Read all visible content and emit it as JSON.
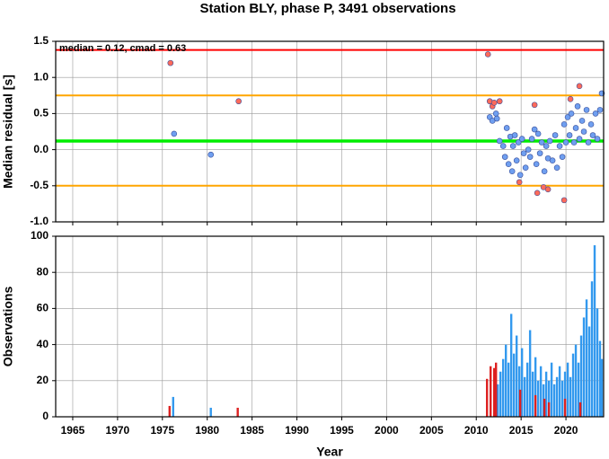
{
  "chart_data": [
    {
      "type": "scatter",
      "title": "Station BLY, phase P, 3491 observations",
      "ylabel": "Median residual [s]",
      "annotation": "median = 0.12, cmad = 0.63",
      "xlim": [
        1963.1,
        2024.2
      ],
      "xticks": [
        1965,
        1970,
        1975,
        1980,
        1985,
        1990,
        1995,
        2000,
        2005,
        2010,
        2015,
        2020
      ],
      "ylim": [
        -1,
        1.5
      ],
      "yticks": [
        {
          "value": -1,
          "label": "-1.0"
        },
        -0.5,
        {
          "value": 0,
          "label": "0.0"
        },
        0.5,
        {
          "value": 1,
          "label": "1.0"
        },
        1.5
      ],
      "grid": true,
      "hlines": [
        {
          "value": 1.38,
          "color": "#ff0000"
        },
        {
          "value": 0.75,
          "color": "#ffa500"
        },
        {
          "value": 0.12,
          "color": "#00ee00"
        },
        {
          "value": -0.5,
          "color": "#ffa500"
        }
      ],
      "series": [
        {
          "color": "#6f9ff0",
          "x": [
            1976.3,
            1980.4,
            2011.5,
            2011.8,
            2012.2,
            2012.3,
            2012.6,
            2013.0,
            2013.2,
            2013.4,
            2013.6,
            2013.8,
            2014.0,
            2014.1,
            2014.3,
            2014.5,
            2014.7,
            2014.9,
            2015.1,
            2015.3,
            2015.5,
            2015.8,
            2016.0,
            2016.2,
            2016.5,
            2016.7,
            2016.9,
            2017.1,
            2017.3,
            2017.6,
            2017.8,
            2018.0,
            2018.2,
            2018.5,
            2018.8,
            2019.0,
            2019.3,
            2019.6,
            2019.8,
            2020.0,
            2020.2,
            2020.4,
            2020.6,
            2020.9,
            2021.1,
            2021.3,
            2021.5,
            2021.8,
            2022.0,
            2022.3,
            2022.5,
            2022.8,
            2023.0,
            2023.3,
            2023.5,
            2023.8,
            2024.0
          ],
          "values": [
            0.22,
            -0.07,
            0.45,
            0.4,
            0.5,
            0.43,
            0.12,
            0.05,
            -0.1,
            0.3,
            -0.2,
            0.18,
            -0.3,
            0.05,
            0.2,
            -0.15,
            0.1,
            -0.35,
            0.15,
            -0.05,
            -0.25,
            0.0,
            -0.1,
            0.15,
            0.28,
            -0.2,
            0.22,
            -0.05,
            0.1,
            -0.3,
            0.05,
            -0.12,
            0.12,
            -0.15,
            0.2,
            -0.25,
            0.05,
            -0.1,
            0.35,
            0.1,
            0.45,
            0.2,
            0.5,
            0.1,
            0.3,
            0.6,
            0.15,
            0.4,
            0.25,
            0.55,
            0.1,
            0.35,
            0.2,
            0.5,
            0.15,
            0.55,
            0.78
          ]
        },
        {
          "color": "#ff6a5a",
          "x": [
            1975.9,
            1983.5,
            2011.3,
            2011.5,
            2011.8,
            2012.0,
            2012.6,
            2014.8,
            2016.5,
            2016.8,
            2017.5,
            2018.0,
            2019.8,
            2020.5,
            2021.5
          ],
          "values": [
            1.2,
            0.67,
            1.32,
            0.67,
            0.6,
            0.65,
            0.67,
            -0.45,
            0.62,
            -0.6,
            -0.52,
            -0.55,
            -0.7,
            0.7,
            0.88
          ]
        }
      ]
    },
    {
      "type": "bar",
      "xlabel": "Year",
      "ylabel": "Observations",
      "xlim": [
        1963.1,
        2024.2
      ],
      "xticks": [
        1965,
        1970,
        1975,
        1980,
        1985,
        1990,
        1995,
        2000,
        2005,
        2010,
        2015,
        2020
      ],
      "ylim": [
        0,
        100
      ],
      "yticks": [
        0,
        20,
        40,
        60,
        80,
        100
      ],
      "grid": true,
      "series": [
        {
          "color": "#3399ee",
          "x": [
            1976.2,
            1980.4,
            2012.4,
            2012.7,
            2013.0,
            2013.3,
            2013.6,
            2013.9,
            2014.2,
            2014.5,
            2014.8,
            2015.1,
            2015.4,
            2015.7,
            2016.0,
            2016.3,
            2016.6,
            2016.9,
            2017.2,
            2017.5,
            2017.8,
            2018.1,
            2018.4,
            2018.7,
            2019.0,
            2019.3,
            2019.6,
            2019.9,
            2020.2,
            2020.5,
            2020.8,
            2021.1,
            2021.4,
            2021.7,
            2022.0,
            2022.3,
            2022.6,
            2022.9,
            2023.2,
            2023.5,
            2023.8,
            2024.0
          ],
          "values": [
            11,
            5,
            18,
            25,
            32,
            40,
            30,
            57,
            35,
            45,
            28,
            38,
            22,
            30,
            48,
            25,
            33,
            20,
            28,
            18,
            25,
            20,
            30,
            18,
            22,
            28,
            20,
            25,
            30,
            22,
            35,
            40,
            30,
            45,
            55,
            65,
            50,
            75,
            95,
            60,
            42,
            32
          ]
        },
        {
          "color": "#dd2020",
          "x": [
            1975.8,
            1983.4,
            2011.2,
            2011.6,
            2012.0,
            2012.2,
            2014.9,
            2016.6,
            2017.6,
            2018.1,
            2019.9,
            2021.6
          ],
          "values": [
            6,
            5,
            21,
            28,
            27,
            30,
            15,
            12,
            10,
            8,
            10,
            8
          ]
        }
      ]
    }
  ]
}
